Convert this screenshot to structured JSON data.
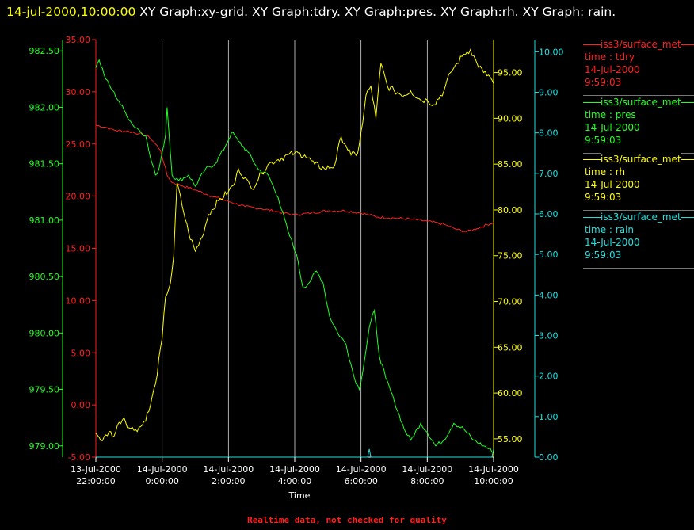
{
  "header": {
    "timestamp": "14-jul-2000,10:00:00",
    "graphs": "XY Graph:xy-grid.  XY Graph:tdry.  XY Graph:pres.  XY Graph:rh.  XY Graph: rain."
  },
  "footer": {
    "note": "Realtime data, not checked for quality"
  },
  "colors": {
    "tdry": "#ff2020",
    "pres": "#20ff20",
    "rh": "#ffff00",
    "rain": "#20e0e0",
    "grid": "#ffffff",
    "axis": "#ffffff"
  },
  "legend": [
    {
      "name": "iss3/surface_met",
      "var": "time : tdry",
      "date": "14-Jul-2000",
      "time": "9:59:03",
      "color": "#ff2020"
    },
    {
      "name": "iss3/surface_met",
      "var": "time : pres",
      "date": "14-Jul-2000",
      "time": "9:59:03",
      "color": "#20ff20"
    },
    {
      "name": "iss3/surface_met",
      "var": "time : rh",
      "date": "14-Jul-2000",
      "time": "9:59:03",
      "color": "#ffff00"
    },
    {
      "name": "iss3/surface_met",
      "var": "time : rain",
      "date": "14-Jul-2000",
      "time": "9:59:03",
      "color": "#20e0e0"
    }
  ],
  "chart_data": {
    "type": "line",
    "xlabel": "Time",
    "x_ticks": [
      {
        "value": 22,
        "line1": "13-Jul-2000",
        "line2": "22:00:00"
      },
      {
        "value": 24,
        "line1": "14-Jul-2000",
        "line2": "0:00:00"
      },
      {
        "value": 26,
        "line1": "14-Jul-2000",
        "line2": "2:00:00"
      },
      {
        "value": 28,
        "line1": "14-Jul-2000",
        "line2": "4:00:00"
      },
      {
        "value": 30,
        "line1": "14-Jul-2000",
        "line2": "6:00:00"
      },
      {
        "value": 32,
        "line1": "14-Jul-2000",
        "line2": "8:00:00"
      },
      {
        "value": 34,
        "line1": "14-Jul-2000",
        "line2": "10:00:00"
      }
    ],
    "xlim": [
      22,
      34
    ],
    "grid": true,
    "axes": {
      "pres": {
        "min": 978.9,
        "max": 982.6,
        "ticks": [
          "979.00",
          "979.50",
          "980.00",
          "980.50",
          "981.00",
          "981.50",
          "982.00",
          "982.50"
        ],
        "tick_values": [
          979,
          979.5,
          980,
          980.5,
          981,
          981.5,
          982,
          982.5
        ]
      },
      "tdry": {
        "min": -5,
        "max": 35,
        "ticks": [
          "-5.00",
          "0.00",
          "5.00",
          "10.00",
          "15.00",
          "20.00",
          "25.00",
          "30.00",
          "35.00"
        ],
        "tick_values": [
          -5,
          0,
          5,
          10,
          15,
          20,
          25,
          30,
          35
        ]
      },
      "rh": {
        "min": 53.0,
        "max": 98.6,
        "ticks": [
          "55.00",
          "60.00",
          "65.00",
          "70.00",
          "75.00",
          "80.00",
          "85.00",
          "90.00",
          "95.00"
        ],
        "tick_values": [
          55,
          60,
          65,
          70,
          75,
          80,
          85,
          90,
          95
        ]
      },
      "rain": {
        "min": 0,
        "max": 10.3,
        "ticks": [
          "0.00",
          "1.00",
          "2.00",
          "3.00",
          "4.00",
          "5.00",
          "6.00",
          "7.00",
          "8.00",
          "9.00",
          "10.00"
        ],
        "tick_values": [
          0,
          1,
          2,
          3,
          4,
          5,
          6,
          7,
          8,
          9,
          10
        ]
      }
    },
    "series": [
      {
        "name": "tdry",
        "axis": "tdry",
        "points": [
          [
            22.0,
            26.8
          ],
          [
            22.3,
            26.6
          ],
          [
            22.6,
            26.3
          ],
          [
            23.0,
            26.2
          ],
          [
            23.3,
            26.0
          ],
          [
            23.6,
            25.7
          ],
          [
            23.8,
            25.0
          ],
          [
            23.95,
            24.4
          ],
          [
            24.05,
            23.2
          ],
          [
            24.15,
            22.0
          ],
          [
            24.3,
            21.3
          ],
          [
            24.6,
            21.0
          ],
          [
            25.0,
            20.6
          ],
          [
            25.5,
            20.0
          ],
          [
            26.0,
            19.5
          ],
          [
            26.5,
            19.0
          ],
          [
            27.0,
            18.8
          ],
          [
            27.5,
            18.5
          ],
          [
            28.0,
            18.2
          ],
          [
            28.5,
            18.4
          ],
          [
            29.0,
            18.6
          ],
          [
            29.5,
            18.6
          ],
          [
            30.0,
            18.4
          ],
          [
            30.5,
            18.0
          ],
          [
            31.0,
            17.9
          ],
          [
            31.5,
            17.8
          ],
          [
            32.0,
            17.6
          ],
          [
            32.5,
            17.3
          ],
          [
            32.9,
            16.8
          ],
          [
            33.2,
            16.6
          ],
          [
            33.5,
            16.9
          ],
          [
            34.0,
            17.5
          ]
        ]
      },
      {
        "name": "pres",
        "axis": "pres",
        "points": [
          [
            22.0,
            982.35
          ],
          [
            22.1,
            982.42
          ],
          [
            22.3,
            982.25
          ],
          [
            22.5,
            982.15
          ],
          [
            22.7,
            982.05
          ],
          [
            22.9,
            981.95
          ],
          [
            23.1,
            981.85
          ],
          [
            23.3,
            981.8
          ],
          [
            23.5,
            981.75
          ],
          [
            23.65,
            981.55
          ],
          [
            23.8,
            981.4
          ],
          [
            23.9,
            981.45
          ],
          [
            24.0,
            981.6
          ],
          [
            24.1,
            981.75
          ],
          [
            24.15,
            982.0
          ],
          [
            24.2,
            981.8
          ],
          [
            24.3,
            981.4
          ],
          [
            24.5,
            981.35
          ],
          [
            24.8,
            981.4
          ],
          [
            25.0,
            981.3
          ],
          [
            25.3,
            981.45
          ],
          [
            25.6,
            981.5
          ],
          [
            25.9,
            981.65
          ],
          [
            26.1,
            981.78
          ],
          [
            26.3,
            981.7
          ],
          [
            26.6,
            981.6
          ],
          [
            26.9,
            981.45
          ],
          [
            27.2,
            981.4
          ],
          [
            27.5,
            981.2
          ],
          [
            27.8,
            980.9
          ],
          [
            28.05,
            980.7
          ],
          [
            28.25,
            980.4
          ],
          [
            28.45,
            980.45
          ],
          [
            28.65,
            980.55
          ],
          [
            28.85,
            980.45
          ],
          [
            29.05,
            980.15
          ],
          [
            29.3,
            980.0
          ],
          [
            29.55,
            979.9
          ],
          [
            29.8,
            979.6
          ],
          [
            29.95,
            979.5
          ],
          [
            30.1,
            979.75
          ],
          [
            30.25,
            980.05
          ],
          [
            30.4,
            980.2
          ],
          [
            30.55,
            979.8
          ],
          [
            30.75,
            979.6
          ],
          [
            31.0,
            979.4
          ],
          [
            31.3,
            979.15
          ],
          [
            31.5,
            979.05
          ],
          [
            31.8,
            979.2
          ],
          [
            32.0,
            979.12
          ],
          [
            32.25,
            979.0
          ],
          [
            32.5,
            979.05
          ],
          [
            32.8,
            979.2
          ],
          [
            33.1,
            979.15
          ],
          [
            33.4,
            979.05
          ],
          [
            33.7,
            979.0
          ],
          [
            34.0,
            978.95
          ]
        ]
      },
      {
        "name": "rh",
        "axis": "rh",
        "points": [
          [
            22.0,
            55.6
          ],
          [
            22.2,
            54.8
          ],
          [
            22.4,
            55.8
          ],
          [
            22.55,
            55.3
          ],
          [
            22.7,
            56.8
          ],
          [
            22.85,
            57.3
          ],
          [
            23.0,
            56.2
          ],
          [
            23.2,
            56.0
          ],
          [
            23.4,
            56.5
          ],
          [
            23.6,
            58.0
          ],
          [
            23.8,
            61.0
          ],
          [
            24.0,
            66.0
          ],
          [
            24.1,
            70.5
          ],
          [
            24.25,
            72.0
          ],
          [
            24.35,
            75.0
          ],
          [
            24.45,
            83.0
          ],
          [
            24.6,
            80.5
          ],
          [
            24.8,
            77.5
          ],
          [
            25.0,
            75.5
          ],
          [
            25.2,
            77.0
          ],
          [
            25.4,
            79.5
          ],
          [
            25.7,
            81.0
          ],
          [
            26.0,
            82.0
          ],
          [
            26.2,
            83.0
          ],
          [
            26.3,
            84.5
          ],
          [
            26.5,
            83.5
          ],
          [
            26.7,
            82.3
          ],
          [
            27.0,
            84.0
          ],
          [
            27.2,
            85.0
          ],
          [
            27.5,
            85.5
          ],
          [
            27.8,
            86.0
          ],
          [
            28.0,
            86.2
          ],
          [
            28.3,
            86.0
          ],
          [
            28.6,
            85.0
          ],
          [
            28.9,
            84.5
          ],
          [
            29.2,
            84.8
          ],
          [
            29.4,
            88.0
          ],
          [
            29.55,
            87.0
          ],
          [
            29.7,
            86.0
          ],
          [
            29.9,
            86.2
          ],
          [
            30.05,
            89.5
          ],
          [
            30.15,
            92.5
          ],
          [
            30.3,
            93.5
          ],
          [
            30.45,
            90.0
          ],
          [
            30.6,
            96.0
          ],
          [
            30.8,
            93.5
          ],
          [
            31.0,
            93.0
          ],
          [
            31.3,
            92.5
          ],
          [
            31.5,
            93.0
          ],
          [
            31.8,
            92.0
          ],
          [
            32.0,
            92.0
          ],
          [
            32.2,
            91.5
          ],
          [
            32.5,
            93.0
          ],
          [
            32.7,
            95.0
          ],
          [
            32.9,
            96.0
          ],
          [
            33.1,
            97.0
          ],
          [
            33.3,
            97.5
          ],
          [
            33.5,
            96.0
          ],
          [
            33.7,
            95.0
          ],
          [
            33.9,
            94.5
          ],
          [
            34.0,
            93.8
          ]
        ]
      },
      {
        "name": "rain",
        "axis": "rain",
        "points": [
          [
            22.0,
            0.0
          ],
          [
            30.2,
            0.0
          ],
          [
            30.25,
            0.2
          ],
          [
            30.3,
            0.0
          ],
          [
            33.95,
            0.0
          ],
          [
            34.0,
            0.2
          ]
        ]
      }
    ]
  }
}
